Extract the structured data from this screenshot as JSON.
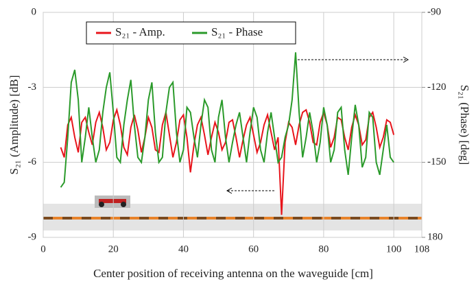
{
  "chart_data": {
    "type": "line",
    "x_label": "Center position of receiving antenna on the waveguide [cm]",
    "y_label": "S₂₁ (Amplitude) [dB]",
    "y2_label": "S₂₁ (Phase) [deg]",
    "xlim": [
      0,
      108
    ],
    "xticks": [
      0,
      20,
      40,
      60,
      80,
      100,
      108
    ],
    "ylim": [
      -9,
      0
    ],
    "yticks": [
      -9,
      -6,
      -3,
      0
    ],
    "y2lim": [
      -180,
      -90
    ],
    "y2ticks": [
      {
        "value": -180,
        "label": "180"
      },
      -150,
      -120,
      -90
    ],
    "grid": true,
    "legend": "top-left",
    "x": [
      5,
      6,
      7,
      8,
      9,
      10,
      11,
      12,
      13,
      14,
      15,
      16,
      17,
      18,
      19,
      20,
      21,
      22,
      23,
      24,
      25,
      26,
      27,
      28,
      29,
      30,
      31,
      32,
      33,
      34,
      35,
      36,
      37,
      38,
      39,
      40,
      41,
      42,
      43,
      44,
      45,
      46,
      47,
      48,
      49,
      50,
      51,
      52,
      53,
      54,
      55,
      56,
      57,
      58,
      59,
      60,
      61,
      62,
      63,
      64,
      65,
      66,
      67,
      68,
      69,
      70,
      71,
      72,
      73,
      74,
      75,
      76,
      77,
      78,
      79,
      80,
      81,
      82,
      83,
      84,
      85,
      86,
      87,
      88,
      89,
      90,
      91,
      92,
      93,
      94,
      95,
      96,
      97,
      98,
      99,
      100
    ],
    "series": [
      {
        "name": "S₂₁ - Amp.",
        "color": "#e8141b",
        "values": [
          -5.4,
          -5.8,
          -4.5,
          -4.2,
          -5.0,
          -5.6,
          -4.4,
          -4.2,
          -4.8,
          -5.3,
          -4.4,
          -4.0,
          -4.6,
          -5.5,
          -5.2,
          -4.3,
          -3.9,
          -4.5,
          -5.4,
          -5.7,
          -4.6,
          -4.1,
          -4.7,
          -5.6,
          -5.0,
          -4.2,
          -4.6,
          -5.5,
          -5.6,
          -4.5,
          -4.0,
          -4.9,
          -5.8,
          -5.2,
          -4.3,
          -4.1,
          -5.0,
          -6.4,
          -5.3,
          -4.5,
          -4.2,
          -4.9,
          -5.7,
          -5.0,
          -4.4,
          -4.8,
          -5.5,
          -5.2,
          -4.4,
          -4.3,
          -5.0,
          -5.8,
          -5.1,
          -4.5,
          -4.2,
          -4.9,
          -5.6,
          -5.2,
          -4.5,
          -4.1,
          -4.8,
          -5.5,
          -5.0,
          -8.1,
          -5.2,
          -4.4,
          -4.6,
          -5.3,
          -4.5,
          -4.0,
          -3.9,
          -4.4,
          -5.2,
          -5.3,
          -4.4,
          -4.0,
          -4.5,
          -5.4,
          -5.0,
          -4.2,
          -4.3,
          -5.0,
          -5.5,
          -4.6,
          -4.1,
          -4.5,
          -5.3,
          -5.1,
          -4.2,
          -4.0,
          -4.6,
          -5.4,
          -5.0,
          -4.3,
          -4.4,
          -4.9
        ],
        "axis": "y"
      },
      {
        "name": "S₂₁ - Phase",
        "color": "#2a9a2a",
        "values": [
          -160,
          -158,
          -140,
          -118,
          -113,
          -125,
          -150,
          -140,
          -128,
          -140,
          -150,
          -145,
          -130,
          -120,
          -114,
          -130,
          -148,
          -150,
          -135,
          -125,
          -117,
          -135,
          -148,
          -150,
          -140,
          -125,
          -118,
          -138,
          -150,
          -148,
          -130,
          -120,
          -118,
          -138,
          -150,
          -145,
          -128,
          -130,
          -140,
          -148,
          -135,
          -125,
          -128,
          -145,
          -150,
          -132,
          -125,
          -140,
          -150,
          -142,
          -135,
          -130,
          -140,
          -150,
          -138,
          -128,
          -132,
          -145,
          -150,
          -138,
          -130,
          -140,
          -150,
          -148,
          -140,
          -135,
          -125,
          -106,
          -130,
          -148,
          -140,
          -130,
          -138,
          -150,
          -142,
          -128,
          -135,
          -150,
          -145,
          -130,
          -128,
          -145,
          -155,
          -140,
          -127,
          -135,
          -152,
          -148,
          -130,
          -132,
          -150,
          -155,
          -145,
          -135,
          -148,
          -150
        ],
        "axis": "y2"
      }
    ]
  }
}
